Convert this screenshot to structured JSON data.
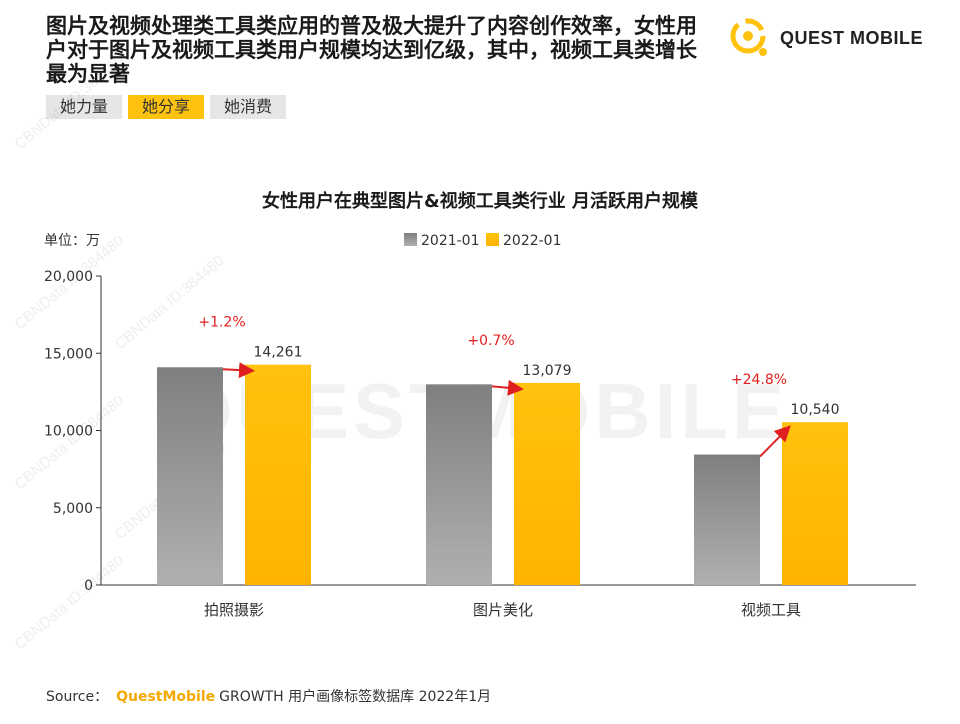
{
  "header": {
    "headline": "图片及视频处理类工具类应用的普及极大提升了内容创作效率，女性用户对于图片及视频工具类用户规模均达到亿级，其中，视频工具类增长最为显著",
    "logo_text": "QUEST MOBILE"
  },
  "tags": [
    {
      "label": "她力量",
      "active": false
    },
    {
      "label": "她分享",
      "active": true
    },
    {
      "label": "她消费",
      "active": false
    }
  ],
  "watermark": {
    "brand": "QUESTMOBILE",
    "id_text": "CBNData ID:384480"
  },
  "chart_data": {
    "type": "bar",
    "title": "女性用户在典型图片&视频工具类行业 月活跃用户规模",
    "unit_label": "单位：万",
    "categories": [
      "拍照摄影",
      "图片美化",
      "视频工具"
    ],
    "series": [
      {
        "name": "2021-01",
        "values": [
          14092,
          12988,
          8445
        ],
        "color": "#8c8c8c"
      },
      {
        "name": "2022-01",
        "values": [
          14261,
          13079,
          10540
        ],
        "color": "#ffc20e"
      }
    ],
    "data_labels": [
      "14,261",
      "13,079",
      "10,540"
    ],
    "growth_labels": [
      "+1.2%",
      "+0.7%",
      "+24.8%"
    ],
    "growth_color": "#e02020",
    "ylim": [
      0,
      20000
    ],
    "yticks": [
      0,
      5000,
      10000,
      15000,
      20000
    ],
    "ytick_labels": [
      "0",
      "5,000",
      "10,000",
      "15,000",
      "20,000"
    ],
    "legend_position": "top-center",
    "grid": false
  },
  "source": {
    "prefix": "Source：",
    "brand": "QuestMobile",
    "rest": "GROWTH 用户画像标签数据库 2022年1月"
  }
}
